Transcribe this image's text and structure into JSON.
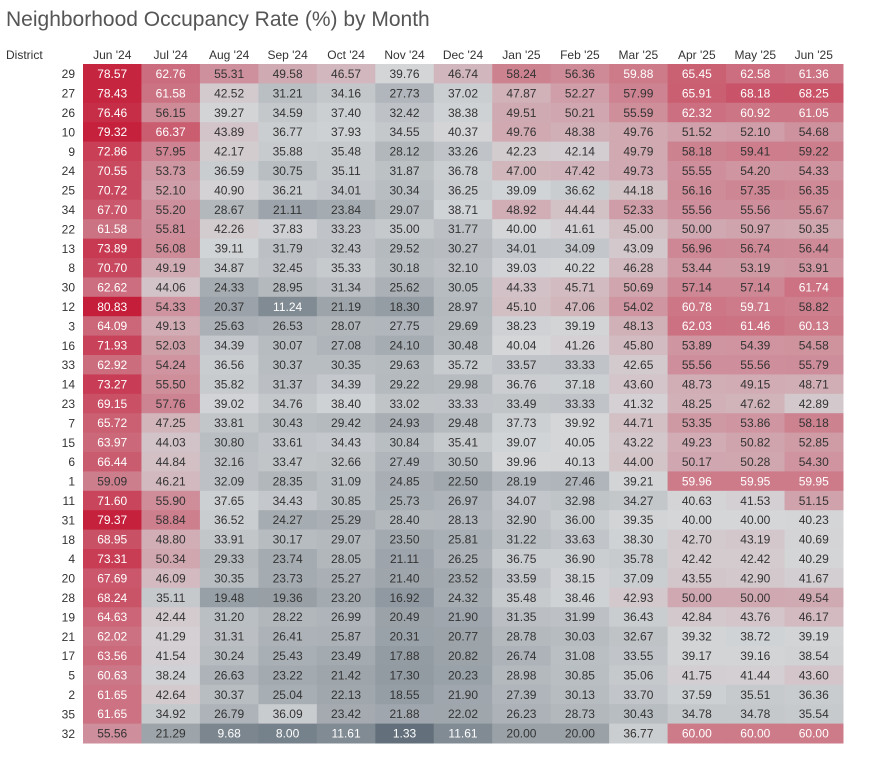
{
  "chart_data": {
    "type": "heatmap",
    "title": "Neighborhood Occupancy Rate (%) by Month",
    "row_header": "District",
    "columns": [
      "Jun '24",
      "Jul '24",
      "Aug '24",
      "Sep '24",
      "Oct '24",
      "Nov '24",
      "Dec '24",
      "Jan '25",
      "Feb '25",
      "Mar '25",
      "Apr '25",
      "May '25",
      "Jun '25"
    ],
    "rows": [
      {
        "district": "29",
        "values": [
          78.57,
          62.76,
          55.31,
          49.58,
          46.57,
          39.76,
          46.74,
          58.24,
          56.36,
          59.88,
          65.45,
          62.58,
          61.36
        ]
      },
      {
        "district": "27",
        "values": [
          78.43,
          61.58,
          42.52,
          31.21,
          34.16,
          27.73,
          37.02,
          47.87,
          52.27,
          57.99,
          65.91,
          68.18,
          68.25
        ]
      },
      {
        "district": "26",
        "values": [
          76.46,
          56.15,
          39.27,
          34.59,
          37.4,
          32.42,
          38.38,
          49.51,
          50.21,
          55.59,
          62.32,
          60.92,
          61.05
        ]
      },
      {
        "district": "10",
        "values": [
          79.32,
          66.37,
          43.89,
          36.77,
          37.93,
          34.55,
          40.37,
          49.76,
          48.38,
          49.76,
          51.52,
          52.1,
          54.68
        ]
      },
      {
        "district": "9",
        "values": [
          72.86,
          57.95,
          42.17,
          35.88,
          35.48,
          28.12,
          33.26,
          42.23,
          42.14,
          49.79,
          58.18,
          59.41,
          59.22
        ]
      },
      {
        "district": "24",
        "values": [
          70.55,
          53.73,
          36.59,
          30.75,
          35.11,
          31.87,
          36.78,
          47.0,
          47.42,
          49.73,
          55.55,
          54.2,
          54.33
        ]
      },
      {
        "district": "25",
        "values": [
          70.72,
          52.1,
          40.9,
          36.21,
          34.01,
          30.34,
          36.25,
          39.09,
          36.62,
          44.18,
          56.16,
          57.35,
          56.35
        ]
      },
      {
        "district": "34",
        "values": [
          67.7,
          55.2,
          28.67,
          21.11,
          23.84,
          29.07,
          38.71,
          48.92,
          44.44,
          52.33,
          55.56,
          55.56,
          55.67
        ]
      },
      {
        "district": "22",
        "values": [
          61.58,
          55.81,
          42.26,
          37.83,
          33.23,
          35.0,
          31.77,
          40.0,
          41.61,
          45.0,
          50.0,
          50.97,
          50.35
        ]
      },
      {
        "district": "13",
        "values": [
          73.89,
          56.08,
          39.11,
          31.79,
          32.43,
          29.52,
          30.27,
          34.01,
          34.09,
          43.09,
          56.96,
          56.74,
          56.44
        ]
      },
      {
        "district": "8",
        "values": [
          70.7,
          49.19,
          34.87,
          32.45,
          35.33,
          30.18,
          32.1,
          39.03,
          40.22,
          46.28,
          53.44,
          53.19,
          53.91
        ]
      },
      {
        "district": "30",
        "values": [
          62.62,
          44.06,
          24.33,
          28.95,
          31.34,
          25.62,
          30.05,
          44.33,
          45.71,
          50.69,
          57.14,
          57.14,
          61.74
        ]
      },
      {
        "district": "12",
        "values": [
          80.83,
          54.33,
          20.37,
          11.24,
          21.19,
          18.3,
          28.97,
          45.1,
          47.06,
          54.02,
          60.78,
          59.71,
          58.82
        ]
      },
      {
        "district": "3",
        "values": [
          64.09,
          49.13,
          25.63,
          26.53,
          28.07,
          27.75,
          29.69,
          38.23,
          39.19,
          48.13,
          62.03,
          61.46,
          60.13
        ]
      },
      {
        "district": "16",
        "values": [
          71.93,
          52.03,
          34.39,
          30.07,
          27.08,
          24.1,
          30.48,
          40.04,
          41.26,
          45.8,
          53.89,
          54.39,
          54.58
        ]
      },
      {
        "district": "33",
        "values": [
          62.92,
          54.24,
          36.56,
          30.37,
          30.35,
          29.63,
          35.72,
          33.57,
          33.33,
          42.65,
          55.56,
          55.56,
          55.79
        ]
      },
      {
        "district": "14",
        "values": [
          73.27,
          55.5,
          35.82,
          31.37,
          34.39,
          29.22,
          29.98,
          36.76,
          37.18,
          43.6,
          48.73,
          49.15,
          48.71
        ]
      },
      {
        "district": "23",
        "values": [
          69.15,
          57.76,
          39.02,
          34.76,
          38.4,
          33.02,
          33.33,
          33.49,
          33.33,
          41.32,
          48.25,
          47.62,
          42.89
        ]
      },
      {
        "district": "7",
        "values": [
          65.72,
          47.25,
          33.81,
          30.43,
          29.42,
          24.93,
          29.48,
          37.73,
          39.92,
          44.71,
          53.35,
          53.86,
          58.18
        ]
      },
      {
        "district": "15",
        "values": [
          63.97,
          44.03,
          30.8,
          33.61,
          34.43,
          30.84,
          35.41,
          39.07,
          40.05,
          43.22,
          49.23,
          50.82,
          52.85
        ]
      },
      {
        "district": "6",
        "values": [
          66.44,
          44.84,
          32.16,
          33.47,
          32.66,
          27.49,
          30.5,
          39.96,
          40.13,
          44.0,
          50.17,
          50.28,
          54.3
        ]
      },
      {
        "district": "1",
        "values": [
          59.09,
          46.21,
          32.09,
          28.35,
          31.09,
          24.85,
          22.5,
          28.19,
          27.46,
          39.21,
          59.96,
          59.95,
          59.95
        ]
      },
      {
        "district": "11",
        "values": [
          71.6,
          55.9,
          37.65,
          34.43,
          30.85,
          25.73,
          26.97,
          34.07,
          32.98,
          34.27,
          40.63,
          41.53,
          51.15
        ]
      },
      {
        "district": "31",
        "values": [
          79.37,
          58.84,
          36.52,
          24.27,
          25.29,
          28.4,
          28.13,
          32.9,
          36.0,
          39.35,
          40.0,
          40.0,
          40.23
        ]
      },
      {
        "district": "18",
        "values": [
          68.95,
          48.8,
          33.91,
          30.17,
          29.07,
          23.5,
          25.81,
          31.22,
          33.63,
          38.3,
          42.7,
          43.19,
          40.69
        ]
      },
      {
        "district": "4",
        "values": [
          73.31,
          50.34,
          29.33,
          23.74,
          28.05,
          21.11,
          26.25,
          36.75,
          36.9,
          35.78,
          42.42,
          42.42,
          40.29
        ]
      },
      {
        "district": "20",
        "values": [
          67.69,
          46.09,
          30.35,
          23.73,
          25.27,
          21.4,
          23.52,
          33.59,
          38.15,
          37.09,
          43.55,
          42.9,
          41.67
        ]
      },
      {
        "district": "28",
        "values": [
          68.24,
          35.11,
          19.48,
          19.36,
          23.2,
          16.92,
          24.32,
          35.48,
          38.46,
          42.93,
          50.0,
          50.0,
          49.54
        ]
      },
      {
        "district": "19",
        "values": [
          64.63,
          42.44,
          31.2,
          28.22,
          26.99,
          20.49,
          21.9,
          31.35,
          31.99,
          36.43,
          42.84,
          43.76,
          46.17
        ]
      },
      {
        "district": "21",
        "values": [
          62.02,
          41.29,
          31.31,
          26.41,
          25.87,
          20.31,
          20.77,
          28.78,
          30.03,
          32.67,
          39.32,
          38.72,
          39.19
        ]
      },
      {
        "district": "17",
        "values": [
          63.56,
          41.54,
          30.24,
          25.43,
          23.49,
          17.88,
          20.82,
          26.74,
          31.08,
          33.55,
          39.17,
          39.16,
          38.54
        ]
      },
      {
        "district": "5",
        "values": [
          60.63,
          38.24,
          26.63,
          23.22,
          21.42,
          17.3,
          20.23,
          28.98,
          30.85,
          35.06,
          41.75,
          41.44,
          43.6
        ]
      },
      {
        "district": "2",
        "values": [
          61.65,
          42.64,
          30.37,
          25.04,
          22.13,
          18.55,
          21.9,
          27.39,
          30.13,
          33.7,
          37.59,
          35.51,
          36.36
        ]
      },
      {
        "district": "35",
        "values": [
          61.65,
          34.92,
          26.79,
          36.09,
          23.42,
          21.88,
          22.02,
          26.23,
          28.73,
          30.43,
          34.78,
          34.78,
          35.54
        ]
      },
      {
        "district": "32",
        "values": [
          55.56,
          21.29,
          9.68,
          8.0,
          11.61,
          1.33,
          11.61,
          20.0,
          20.0,
          36.77,
          60.0,
          60.0,
          60.0
        ]
      }
    ],
    "color_scale": {
      "low": "#5f6d78",
      "mid": "#d4d6d8",
      "high": "#c51e3a",
      "domain": [
        0,
        40,
        80
      ]
    },
    "text_colors": {
      "dark": "#333333",
      "light": "#ffffff"
    },
    "header_color": "#333333",
    "title_color": "#555555"
  }
}
